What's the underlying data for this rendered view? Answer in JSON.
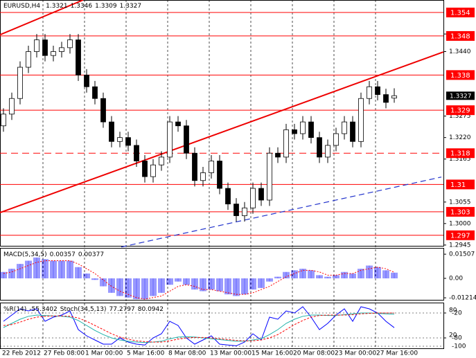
{
  "chart_data": [
    {
      "type": "candlestick",
      "title": "EURUSD,H4",
      "categories": [
        "22 Feb 2012",
        null,
        null,
        null,
        null,
        "27 Feb 08:00",
        null,
        null,
        null,
        null,
        "1 Mar 00:00",
        null,
        null,
        null,
        null,
        "5 Mar 16:00",
        null,
        null,
        null,
        null,
        "8 Mar 08:00",
        null,
        null,
        null,
        null,
        "13 Mar 00:00",
        null,
        null,
        null,
        null,
        "15 Mar 16:00",
        null,
        null,
        null,
        null,
        "20 Mar 08:00",
        null,
        null,
        null,
        null,
        "23 Mar 00:00",
        null,
        null,
        null,
        null,
        "27 Mar 16:00",
        null,
        null
      ],
      "open": [
        1.325,
        1.328,
        1.332,
        1.34,
        1.344,
        1.347,
        1.343,
        1.344,
        1.345,
        1.347,
        1.338,
        1.335,
        1.332,
        1.326,
        1.321,
        1.322,
        1.32,
        1.316,
        1.312,
        1.315,
        1.317,
        1.326,
        1.325,
        1.318,
        1.311,
        1.313,
        1.316,
        1.309,
        1.305,
        1.302,
        1.304,
        1.309,
        1.306,
        1.318,
        1.317,
        1.324,
        1.323,
        1.326,
        1.322,
        1.317,
        1.32,
        1.323,
        1.326,
        1.321,
        1.332,
        1.335,
        1.333,
        1.3321
      ],
      "high": [
        1.3295,
        1.3335,
        1.3415,
        1.3455,
        1.3485,
        1.3485,
        1.3455,
        1.3465,
        1.3485,
        1.3485,
        1.3395,
        1.3365,
        1.3335,
        1.3275,
        1.3235,
        1.3235,
        1.3215,
        1.3175,
        1.3165,
        1.3185,
        1.3275,
        1.3275,
        1.3265,
        1.3195,
        1.3145,
        1.3175,
        1.3175,
        1.3105,
        1.3065,
        1.3055,
        1.3105,
        1.3105,
        1.3195,
        1.3195,
        1.3255,
        1.3255,
        1.3275,
        1.3275,
        1.3235,
        1.3215,
        1.3245,
        1.3275,
        1.3275,
        1.3335,
        1.3365,
        1.3365,
        1.3345,
        1.3346
      ],
      "low": [
        1.3235,
        1.3265,
        1.3305,
        1.3385,
        1.3425,
        1.3415,
        1.3415,
        1.3425,
        1.3435,
        1.3365,
        1.3335,
        1.3305,
        1.3245,
        1.3195,
        1.3195,
        1.3185,
        1.3145,
        1.3105,
        1.3105,
        1.3135,
        1.3155,
        1.3235,
        1.3165,
        1.3095,
        1.3095,
        1.3115,
        1.3075,
        1.3035,
        1.3005,
        1.3005,
        1.3025,
        1.3045,
        1.3045,
        1.3155,
        1.3155,
        1.3215,
        1.3215,
        1.3205,
        1.3155,
        1.3155,
        1.3185,
        1.3215,
        1.3195,
        1.3195,
        1.3305,
        1.3315,
        1.3295,
        1.3309
      ],
      "close": [
        1.328,
        1.332,
        1.34,
        1.344,
        1.347,
        1.343,
        1.344,
        1.345,
        1.347,
        1.338,
        1.335,
        1.332,
        1.326,
        1.321,
        1.322,
        1.32,
        1.316,
        1.312,
        1.315,
        1.317,
        1.326,
        1.325,
        1.318,
        1.311,
        1.313,
        1.316,
        1.309,
        1.305,
        1.302,
        1.304,
        1.309,
        1.306,
        1.318,
        1.317,
        1.324,
        1.323,
        1.326,
        1.322,
        1.317,
        1.32,
        1.323,
        1.326,
        1.321,
        1.332,
        1.335,
        1.333,
        1.331,
        1.3327
      ],
      "ylim": [
        1.2943,
        1.3572
      ],
      "yticks": [
        1.3485,
        {
          "value": 1.344,
          "label": "1.3440"
        },
        1.3275,
        {
          "value": 1.322,
          "label": "1.3220"
        },
        1.3165,
        1.3055,
        {
          "value": 1.3,
          "label": "1.3000"
        },
        1.2945
      ],
      "levels": [
        1.354,
        1.348,
        1.338,
        1.329,
        1.31,
        1.303,
        1.297
      ],
      "dashed_levels": [
        1.318
      ],
      "level_color": "#ff0000",
      "trendlines": [
        {
          "color": "#ee0000",
          "from": [
            -0.42,
            1.3483
          ],
          "to": [
            9.58,
            1.3572
          ]
        },
        {
          "color": "#ee0000",
          "from": [
            -0.42,
            1.3028
          ],
          "to": [
            52.9,
            1.3439
          ]
        },
        {
          "color": "#2233cc",
          "dashed": true,
          "from": [
            14.17,
            1.294
          ],
          "to": [
            52.67,
            1.3119
          ]
        }
      ]
    },
    {
      "type": "macd",
      "title": "MACD(5,34,5)",
      "histogram": [
        0.004,
        0.006,
        0.009,
        0.011,
        0.013,
        0.012,
        0.011,
        0.011,
        0.011,
        0.007,
        0.003,
        -0.001,
        -0.005,
        -0.009,
        -0.011,
        -0.012,
        -0.013,
        -0.013,
        -0.011,
        -0.009,
        -0.004,
        -0.002,
        -0.004,
        -0.007,
        -0.008,
        -0.007,
        -0.008,
        -0.01,
        -0.011,
        -0.01,
        -0.007,
        -0.006,
        -0.002,
        0.001,
        0.004,
        0.005,
        0.006,
        0.005,
        0.002,
        0.001,
        0.002,
        0.004,
        0.003,
        0.006,
        0.008,
        0.007,
        0.005,
        0.00357
      ],
      "signal": [
        0.003,
        0.004,
        0.006,
        0.008,
        0.01,
        0.011,
        0.011,
        0.011,
        0.011,
        0.009,
        0.006,
        0.003,
        -0.001,
        -0.005,
        -0.008,
        -0.01,
        -0.012,
        -0.013,
        -0.012,
        -0.011,
        -0.008,
        -0.005,
        -0.004,
        -0.005,
        -0.007,
        -0.007,
        -0.008,
        -0.009,
        -0.01,
        -0.01,
        -0.009,
        -0.007,
        -0.005,
        -0.002,
        0.001,
        0.003,
        0.005,
        0.005,
        0.004,
        0.002,
        0.002,
        0.003,
        0.003,
        0.005,
        0.006,
        0.007,
        0.006,
        0.00377
      ],
      "histogram_color": "#0000ff",
      "signal_color": "#ff0000",
      "ylim": [
        -0.0134,
        0.019
      ],
      "yticks": [
        0.01507,
        {
          "value": 0,
          "label": "0.00"
        },
        -0.01214
      ]
    },
    {
      "type": "oscillator",
      "series": [
        {
          "name": "%R(14)",
          "color": "#0000ff",
          "values": [
            -40,
            -25,
            -10,
            -15,
            -10,
            -40,
            -30,
            -25,
            -15,
            -60,
            -75,
            -85,
            -95,
            -95,
            -80,
            -90,
            -95,
            -97,
            -80,
            -70,
            -40,
            -50,
            -80,
            -95,
            -85,
            -75,
            -95,
            -97,
            -99,
            -90,
            -70,
            -85,
            -30,
            -35,
            -15,
            -20,
            -5,
            -30,
            -60,
            -45,
            -25,
            -10,
            -40,
            -5,
            -10,
            -20,
            -40,
            -55.3402
          ]
        },
        {
          "name": "Stoch(34,5,13)",
          "color": "#20b2aa",
          "axis": "y2",
          "values": [
            45,
            55,
            65,
            72,
            75,
            74,
            73,
            72,
            70,
            62,
            50,
            38,
            28,
            20,
            15,
            12,
            10,
            9,
            10,
            12,
            18,
            22,
            23,
            22,
            20,
            18,
            16,
            14,
            12,
            12,
            15,
            18,
            28,
            40,
            55,
            65,
            72,
            75,
            75,
            74,
            74,
            76,
            78,
            80,
            80,
            79,
            78,
            77.2797
          ]
        },
        {
          "color": "#ff0000",
          "axis": "y2",
          "dashed": true,
          "values": [
            50,
            52,
            58,
            65,
            70,
            72,
            73,
            73,
            72,
            68,
            60,
            50,
            40,
            30,
            22,
            17,
            13,
            11,
            10,
            10,
            13,
            17,
            20,
            21,
            21,
            20,
            18,
            16,
            14,
            13,
            13,
            15,
            20,
            28,
            40,
            52,
            62,
            70,
            74,
            75,
            75,
            75,
            76,
            78,
            79,
            80,
            80,
            80.0942
          ]
        }
      ],
      "ylim": [
        -105,
        5
      ],
      "yticks": [
        -20,
        -80,
        -100
      ],
      "y2lim": [
        -5,
        105
      ],
      "y2ticks": [
        80,
        20
      ]
    }
  ]
}
